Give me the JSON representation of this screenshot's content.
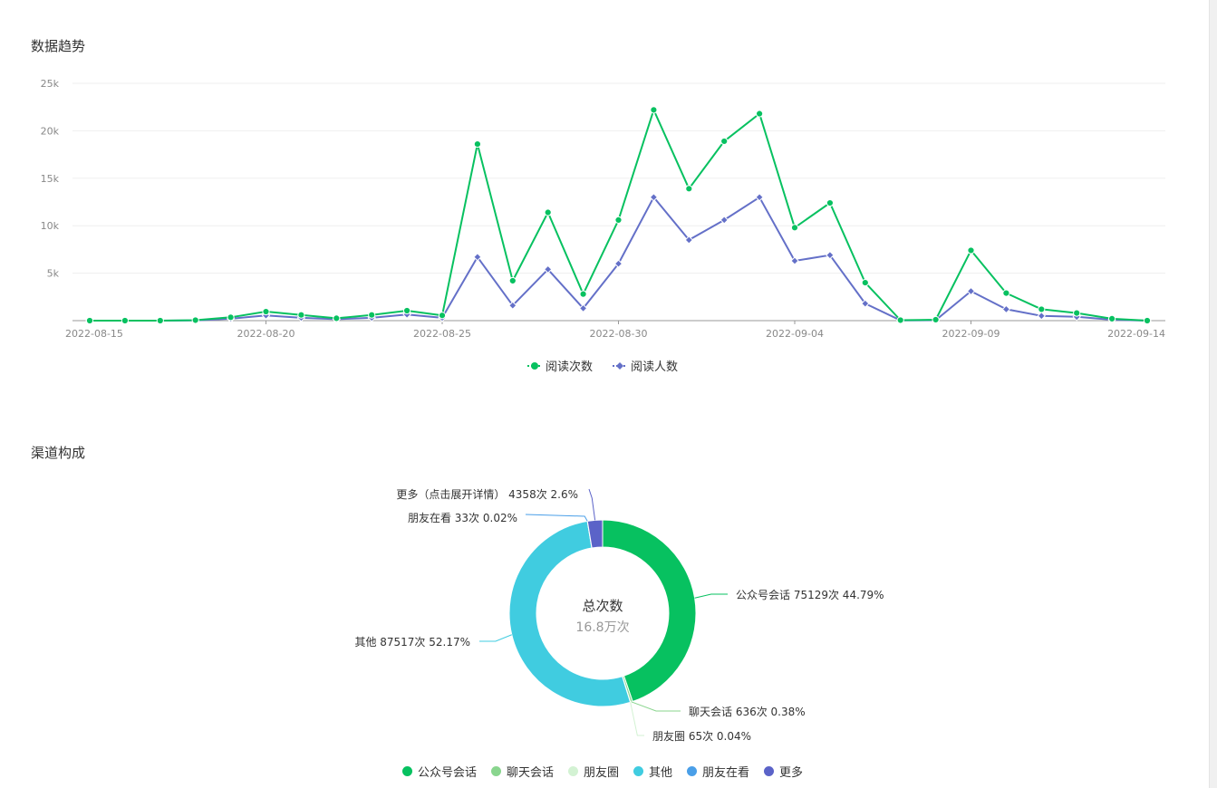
{
  "sections": {
    "trend_title": "数据趋势",
    "channel_title": "渠道构成"
  },
  "chart_data": [
    {
      "type": "line",
      "title": "数据趋势",
      "x": [
        "2022-08-15",
        "2022-08-16",
        "2022-08-17",
        "2022-08-18",
        "2022-08-19",
        "2022-08-20",
        "2022-08-21",
        "2022-08-22",
        "2022-08-23",
        "2022-08-24",
        "2022-08-25",
        "2022-08-26",
        "2022-08-27",
        "2022-08-28",
        "2022-08-29",
        "2022-08-30",
        "2022-08-31",
        "2022-09-01",
        "2022-09-02",
        "2022-09-03",
        "2022-09-04",
        "2022-09-05",
        "2022-09-06",
        "2022-09-07",
        "2022-09-08",
        "2022-09-09",
        "2022-09-10",
        "2022-09-11",
        "2022-09-12",
        "2022-09-13",
        "2022-09-14"
      ],
      "x_tick_labels": [
        "2022-08-15",
        "2022-08-20",
        "2022-08-25",
        "2022-08-30",
        "2022-09-04",
        "2022-09-09",
        "2022-09-14"
      ],
      "y_tick_labels": [
        "5k",
        "10k",
        "15k",
        "20k",
        "25k"
      ],
      "ylim": [
        0,
        25000
      ],
      "grid": true,
      "legend_position": "bottom",
      "series": [
        {
          "name": "阅读次数",
          "color": "#07c160",
          "marker": "circle",
          "values": [
            0,
            0,
            0,
            50,
            350,
            950,
            600,
            250,
            600,
            1050,
            550,
            18600,
            4200,
            11400,
            2800,
            10600,
            22200,
            13900,
            18900,
            21800,
            9800,
            12400,
            4000,
            50,
            100,
            7400,
            2900,
            1200,
            800,
            200,
            0
          ]
        },
        {
          "name": "阅读人数",
          "color": "#6470c8",
          "marker": "diamond",
          "values": [
            0,
            0,
            0,
            30,
            200,
            550,
            300,
            150,
            300,
            650,
            300,
            6700,
            1600,
            5400,
            1300,
            6000,
            13000,
            8500,
            10600,
            13000,
            6300,
            6900,
            1800,
            30,
            50,
            3100,
            1200,
            500,
            400,
            100,
            0
          ]
        }
      ]
    },
    {
      "type": "pie",
      "title": "渠道构成",
      "center_label": "总次数",
      "center_value": "16.8万次",
      "legend_position": "bottom",
      "slices": [
        {
          "name": "公众号会话",
          "value": 75129,
          "percent": 44.79,
          "label": "公众号会话 75129次 44.79%",
          "color": "#07c160"
        },
        {
          "name": "聊天会话",
          "value": 636,
          "percent": 0.38,
          "label": "聊天会话 636次 0.38%",
          "color": "#89d58e"
        },
        {
          "name": "朋友圈",
          "value": 65,
          "percent": 0.04,
          "label": "朋友圈 65次 0.04%",
          "color": "#d3f2d3"
        },
        {
          "name": "其他",
          "value": 87517,
          "percent": 52.17,
          "label": "其他 87517次 52.17%",
          "color": "#40cce0"
        },
        {
          "name": "朋友在看",
          "value": 33,
          "percent": 0.02,
          "label": "朋友在看 33次 0.02%",
          "color": "#4a9fe8"
        },
        {
          "name": "更多",
          "value": 4358,
          "percent": 2.6,
          "label": "更多（点击展开详情） 4358次 2.6%",
          "color": "#5b63c8"
        }
      ]
    }
  ]
}
